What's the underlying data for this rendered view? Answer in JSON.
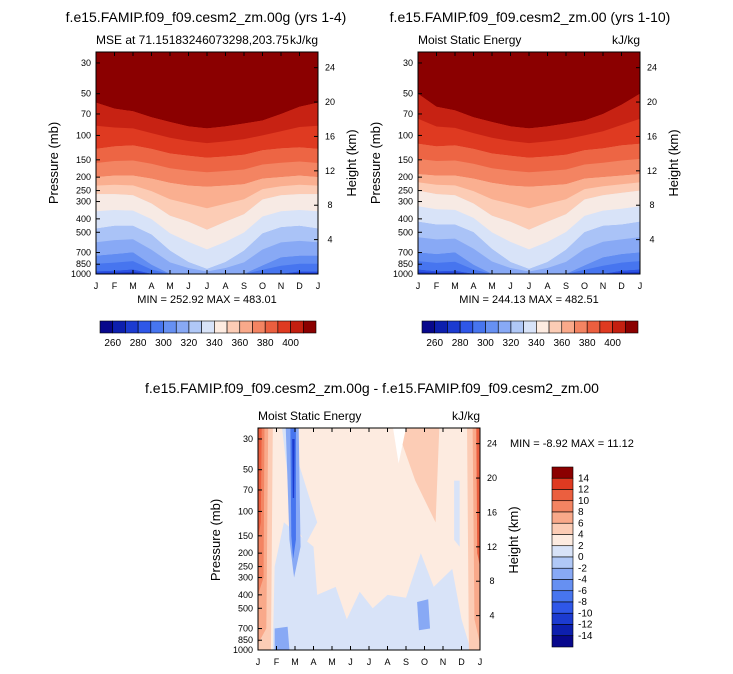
{
  "chart_data": [
    {
      "type": "heatmap",
      "title": "f.e15.FAMIP.f09_f09.cesm2_zm.00g (yrs 1-4)",
      "left_string": "MSE at 71.15183246073298,203.75",
      "right_string": "kJ/kg",
      "ylabel": "Pressure (mb)",
      "ylabel_right": "Height (km)",
      "xlabel": "",
      "x_ticks": [
        "J",
        "F",
        "M",
        "A",
        "M",
        "J",
        "J",
        "A",
        "S",
        "O",
        "N",
        "D",
        "J"
      ],
      "pressure_ticks": [
        30,
        50,
        70,
        100,
        150,
        200,
        250,
        300,
        400,
        500,
        700,
        850,
        1000
      ],
      "pressure_tick_labels": [
        "30",
        "50",
        "70",
        "100",
        "150",
        "200",
        "250",
        "300",
        "400",
        "500",
        "700",
        "850",
        "1000"
      ],
      "height_ticks": [
        4,
        8,
        12,
        16,
        20,
        24
      ],
      "height_tick_labels": [
        "4",
        "8",
        "12",
        "16",
        "20",
        "24"
      ],
      "min_max_text": "MIN = 252.92 MAX = 483.01",
      "colorbar_labels": [
        "260",
        "280",
        "300",
        "320",
        "340",
        "360",
        "380",
        "400"
      ],
      "levels": [
        260,
        270,
        280,
        290,
        300,
        310,
        320,
        330,
        340,
        350,
        360,
        370,
        380,
        390,
        400
      ],
      "colors": [
        "#08088c",
        "#0d1fae",
        "#1c3bd0",
        "#2f57e8",
        "#4775ef",
        "#6690f2",
        "#88a9f5",
        "#b0c8f7",
        "#d8e3f8",
        "#fdebe0",
        "#fcccb5",
        "#f9a98a",
        "#f38462",
        "#eb5f3f",
        "#df3a21",
        "#c31f10",
        "#8b0000"
      ],
      "isoline_levels": [
        270,
        290,
        310,
        330,
        350,
        370,
        390,
        410
      ],
      "isoline_pressure_mb": [
        [
          1000,
          1000,
          1000,
          1000,
          1000,
          1000,
          1000,
          1000,
          1000,
          1000,
          1000,
          1000,
          1000
        ],
        [
          960,
          950,
          930,
          1000,
          1000,
          1000,
          1000,
          1000,
          1000,
          1000,
          1000,
          960,
          960
        ],
        [
          740,
          720,
          700,
          860,
          1000,
          1000,
          1000,
          1000,
          1000,
          870,
          760,
          740,
          740
        ],
        [
          470,
          450,
          450,
          520,
          680,
          820,
          920,
          820,
          680,
          510,
          460,
          450,
          470
        ],
        [
          265,
          265,
          270,
          310,
          380,
          420,
          480,
          420,
          370,
          290,
          270,
          265,
          265
        ],
        [
          200,
          195,
          195,
          205,
          220,
          230,
          235,
          230,
          225,
          205,
          200,
          195,
          200
        ],
        [
          125,
          120,
          118,
          125,
          135,
          140,
          145,
          142,
          138,
          128,
          124,
          122,
          125
        ],
        [
          58,
          64,
          67,
          74,
          80,
          86,
          89,
          86,
          82,
          78,
          70,
          62,
          58
        ]
      ],
      "ylim_mb": [
        1000,
        25
      ]
    },
    {
      "type": "heatmap",
      "title": "f.e15.FAMIP.f09_f09.cesm2_zm.00 (yrs 1-10)",
      "left_string": "Moist Static Energy",
      "right_string": "kJ/kg",
      "ylabel": "Pressure (mb)",
      "ylabel_right": "Height (km)",
      "xlabel": "",
      "x_ticks": [
        "J",
        "F",
        "M",
        "A",
        "M",
        "J",
        "J",
        "A",
        "S",
        "O",
        "N",
        "D",
        "J"
      ],
      "pressure_ticks": [
        30,
        50,
        70,
        100,
        150,
        200,
        250,
        300,
        400,
        500,
        700,
        850,
        1000
      ],
      "pressure_tick_labels": [
        "30",
        "50",
        "70",
        "100",
        "150",
        "200",
        "250",
        "300",
        "400",
        "500",
        "700",
        "850",
        "1000"
      ],
      "height_ticks": [
        4,
        8,
        12,
        16,
        20,
        24
      ],
      "height_tick_labels": [
        "4",
        "8",
        "12",
        "16",
        "20",
        "24"
      ],
      "min_max_text": "MIN = 244.13 MAX = 482.51",
      "colorbar_labels": [
        "260",
        "280",
        "300",
        "320",
        "340",
        "360",
        "380",
        "400"
      ],
      "levels": [
        260,
        270,
        280,
        290,
        300,
        310,
        320,
        330,
        340,
        350,
        360,
        370,
        380,
        390,
        400
      ],
      "colors": [
        "#08088c",
        "#0d1fae",
        "#1c3bd0",
        "#2f57e8",
        "#4775ef",
        "#6690f2",
        "#88a9f5",
        "#b0c8f7",
        "#d8e3f8",
        "#fdebe0",
        "#fcccb5",
        "#f9a98a",
        "#f38462",
        "#eb5f3f",
        "#df3a21",
        "#c31f10",
        "#8b0000"
      ],
      "isoline_levels": [
        270,
        290,
        310,
        330,
        350,
        370,
        390,
        410
      ],
      "isoline_pressure_mb": [
        [
          1000,
          1000,
          1000,
          1000,
          1000,
          1000,
          1000,
          1000,
          1000,
          1000,
          1000,
          1000,
          1000
        ],
        [
          930,
          960,
          950,
          1000,
          1000,
          1000,
          1000,
          1000,
          1000,
          1000,
          1000,
          950,
          930
        ],
        [
          700,
          720,
          700,
          860,
          1000,
          1000,
          1000,
          1000,
          1000,
          870,
          760,
          720,
          700
        ],
        [
          420,
          440,
          440,
          500,
          660,
          820,
          920,
          820,
          670,
          500,
          450,
          440,
          420
        ],
        [
          250,
          265,
          270,
          310,
          380,
          420,
          480,
          420,
          370,
          290,
          270,
          260,
          250
        ],
        [
          190,
          195,
          195,
          205,
          220,
          230,
          235,
          230,
          225,
          205,
          200,
          195,
          190
        ],
        [
          115,
          120,
          118,
          125,
          135,
          140,
          145,
          142,
          138,
          128,
          124,
          118,
          115
        ],
        [
          50,
          62,
          66,
          74,
          80,
          86,
          89,
          86,
          82,
          78,
          70,
          60,
          50
        ]
      ],
      "ylim_mb": [
        1000,
        25
      ]
    },
    {
      "type": "heatmap",
      "title": "f.e15.FAMIP.f09_f09.cesm2_zm.00g - f.e15.FAMIP.f09_f09.cesm2_zm.00",
      "left_string": "Moist Static Energy",
      "right_string": "kJ/kg",
      "ylabel": "Pressure (mb)",
      "ylabel_right": "Height (km)",
      "xlabel": "",
      "x_ticks": [
        "J",
        "F",
        "M",
        "A",
        "M",
        "J",
        "J",
        "A",
        "S",
        "O",
        "N",
        "D",
        "J"
      ],
      "pressure_ticks": [
        30,
        50,
        70,
        100,
        150,
        200,
        250,
        300,
        400,
        500,
        700,
        850,
        1000
      ],
      "pressure_tick_labels": [
        "30",
        "50",
        "70",
        "100",
        "150",
        "200",
        "250",
        "300",
        "400",
        "500",
        "700",
        "850",
        "1000"
      ],
      "height_ticks": [
        4,
        8,
        12,
        16,
        20,
        24
      ],
      "height_tick_labels": [
        "4",
        "8",
        "12",
        "16",
        "20",
        "24"
      ],
      "min_max_text": "MIN = -8.92 MAX =  11.12",
      "colorbar_labels": [
        "14",
        "12",
        "10",
        "8",
        "6",
        "4",
        "2",
        "0",
        "-2",
        "-4",
        "-6",
        "-8",
        "-10",
        "-12",
        "-14"
      ],
      "levels": [
        -14,
        -12,
        -10,
        -8,
        -6,
        -4,
        -2,
        0,
        2,
        4,
        6,
        8,
        10,
        12,
        14
      ],
      "colors": [
        "#08088c",
        "#0d1fae",
        "#1c3bd0",
        "#2f57e8",
        "#4775ef",
        "#6690f2",
        "#88a9f5",
        "#b0c8f7",
        "#d8e3f8",
        "#fdebe0",
        "#fcccb5",
        "#f9a98a",
        "#f38462",
        "#eb5f3f",
        "#df3a21",
        "#8b0000"
      ],
      "diff_month_values": [
        10,
        1,
        -5,
        0,
        0,
        1,
        1,
        1,
        1,
        1,
        1,
        0,
        10
      ],
      "ylim_mb": [
        1000,
        25
      ]
    }
  ]
}
